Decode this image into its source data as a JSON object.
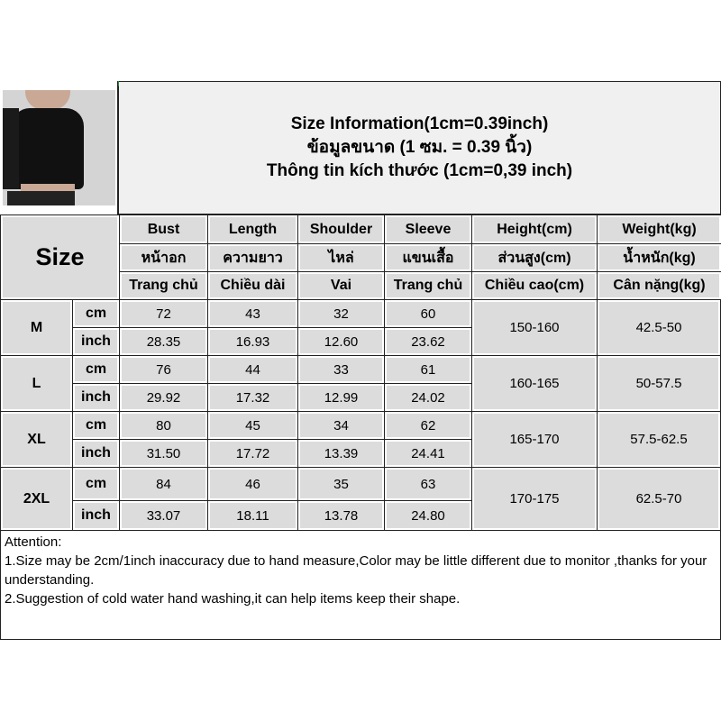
{
  "title": {
    "line_en": "Size Information(1cm=0.39inch)",
    "line_th": "ข้อมูลขนาด (1 ซม. = 0.39 นิ้ว)",
    "line_vi": "Thông tin kích thước (1cm=0,39 inch)"
  },
  "size_label": "Size",
  "columns": [
    {
      "en": "Bust",
      "th": "หน้าอก",
      "vi": "Trang chủ"
    },
    {
      "en": "Length",
      "th": "ความยาว",
      "vi": "Chiều dài"
    },
    {
      "en": "Shoulder",
      "th": "ไหล่",
      "vi": "Vai"
    },
    {
      "en": "Sleeve",
      "th": "แขนเสื้อ",
      "vi": "Trang chủ"
    },
    {
      "en": "Height(cm)",
      "th": "ส่วนสูง(cm)",
      "vi": "Chiều cao(cm)"
    },
    {
      "en": "Weight(kg)",
      "th": "น้ำหนัก(kg)",
      "vi": "Cân nặng(kg)"
    }
  ],
  "units": {
    "cm": "cm",
    "inch": "inch"
  },
  "rows": [
    {
      "size": "M",
      "cm": [
        "72",
        "43",
        "32",
        "60"
      ],
      "inch": [
        "28.35",
        "16.93",
        "12.60",
        "23.62"
      ],
      "height": "150-160",
      "weight": "42.5-50"
    },
    {
      "size": "L",
      "cm": [
        "76",
        "44",
        "33",
        "61"
      ],
      "inch": [
        "29.92",
        "17.32",
        "12.99",
        "24.02"
      ],
      "height": "160-165",
      "weight": "50-57.5"
    },
    {
      "size": "XL",
      "cm": [
        "80",
        "45",
        "34",
        "62"
      ],
      "inch": [
        "31.50",
        "17.72",
        "13.39",
        "24.41"
      ],
      "height": "165-170",
      "weight": "57.5-62.5"
    },
    {
      "size": "2XL",
      "cm": [
        "84",
        "46",
        "35",
        "63"
      ],
      "inch": [
        "33.07",
        "18.11",
        "13.78",
        "24.80"
      ],
      "height": "170-175",
      "weight": "62.5-70"
    }
  ],
  "attention": {
    "heading": "Attention:",
    "note1": "1.Size may be 2cm/1inch inaccuracy due to hand measure,Color may be little different due to monitor ,thanks for your understanding.",
    "note2": "2.Suggestion of cold water hand washing,it can help items keep their shape."
  }
}
